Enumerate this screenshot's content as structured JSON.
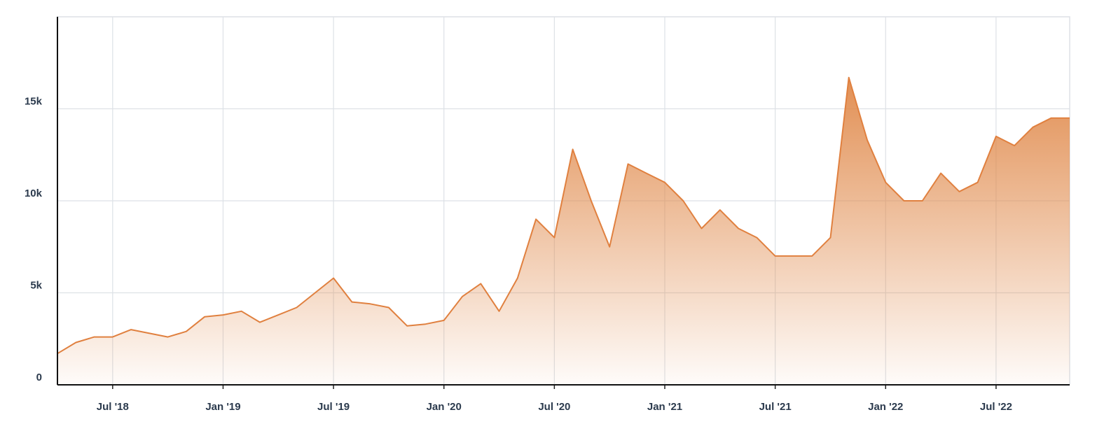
{
  "chart_data": {
    "type": "area",
    "x": [
      "2018-04",
      "2018-05",
      "2018-06",
      "2018-07",
      "2018-08",
      "2018-09",
      "2018-10",
      "2018-11",
      "2018-12",
      "2019-01",
      "2019-02",
      "2019-03",
      "2019-04",
      "2019-05",
      "2019-06",
      "2019-07",
      "2019-08",
      "2019-09",
      "2019-10",
      "2019-11",
      "2019-12",
      "2020-01",
      "2020-02",
      "2020-03",
      "2020-04",
      "2020-05",
      "2020-06",
      "2020-07",
      "2020-08",
      "2020-09",
      "2020-10",
      "2020-11",
      "2020-12",
      "2021-01",
      "2021-02",
      "2021-03",
      "2021-04",
      "2021-05",
      "2021-06",
      "2021-07",
      "2021-08",
      "2021-09",
      "2021-10",
      "2021-11",
      "2021-12",
      "2022-01",
      "2022-02",
      "2022-03",
      "2022-04",
      "2022-05",
      "2022-06",
      "2022-07",
      "2022-08",
      "2022-09",
      "2022-10",
      "2022-11"
    ],
    "values": [
      1700,
      2300,
      2600,
      2600,
      3000,
      2800,
      2600,
      2900,
      3700,
      3800,
      4000,
      3400,
      3800,
      4200,
      5000,
      5800,
      4500,
      4400,
      4200,
      3200,
      3300,
      3500,
      4800,
      5500,
      4000,
      5800,
      9000,
      8000,
      12800,
      10000,
      7500,
      12000,
      11500,
      11000,
      10000,
      8500,
      9500,
      8500,
      8000,
      7000,
      7000,
      7000,
      8000,
      16700,
      13300,
      11000,
      10000,
      10000,
      11500,
      10500,
      11000,
      13500,
      13000,
      14000,
      14500,
      14500
    ],
    "color": "#e0803f",
    "xlim": [
      "2018-04",
      "2022-11"
    ],
    "xticks": [
      {
        "value": "2018-07",
        "label": "Jul '18"
      },
      {
        "value": "2019-01",
        "label": "Jan '19"
      },
      {
        "value": "2019-07",
        "label": "Jul '19"
      },
      {
        "value": "2020-01",
        "label": "Jan '20"
      },
      {
        "value": "2020-07",
        "label": "Jul '20"
      },
      {
        "value": "2021-01",
        "label": "Jan '21"
      },
      {
        "value": "2021-07",
        "label": "Jul '21"
      },
      {
        "value": "2022-01",
        "label": "Jan '22"
      },
      {
        "value": "2022-07",
        "label": "Jul '22"
      }
    ],
    "ylim": [
      0,
      20000
    ],
    "yticks": [
      0,
      {
        "value": 5000,
        "label": "5k"
      },
      {
        "value": 10000,
        "label": "10k"
      },
      {
        "value": 15000,
        "label": "15k"
      }
    ],
    "grid": true
  }
}
